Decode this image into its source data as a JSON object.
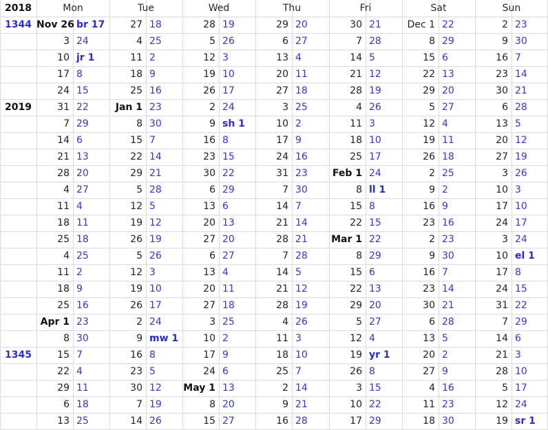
{
  "header": {
    "year": "2018",
    "days": [
      "Mon",
      "Tue",
      "Wed",
      "Thu",
      "Fri",
      "Sat",
      "Sun"
    ]
  },
  "rows": [
    {
      "year": "1344",
      "year_blue": true,
      "cells": [
        [
          "Nov 26",
          "br 17"
        ],
        [
          "27",
          "18"
        ],
        [
          "28",
          "19"
        ],
        [
          "29",
          "20"
        ],
        [
          "30",
          "21"
        ],
        [
          "Dec 1",
          "22"
        ],
        [
          "2",
          "23"
        ]
      ],
      "bold_g": [
        0
      ],
      "bold_i": [
        0
      ]
    },
    {
      "year": "",
      "cells": [
        [
          "3",
          "24"
        ],
        [
          "4",
          "25"
        ],
        [
          "5",
          "26"
        ],
        [
          "6",
          "27"
        ],
        [
          "7",
          "28"
        ],
        [
          "8",
          "29"
        ],
        [
          "9",
          "30"
        ]
      ]
    },
    {
      "year": "",
      "cells": [
        [
          "10",
          "jr 1"
        ],
        [
          "11",
          "2"
        ],
        [
          "12",
          "3"
        ],
        [
          "13",
          "4"
        ],
        [
          "14",
          "5"
        ],
        [
          "15",
          "6"
        ],
        [
          "16",
          "7"
        ]
      ],
      "bold_i": [
        0
      ]
    },
    {
      "year": "",
      "cells": [
        [
          "17",
          "8"
        ],
        [
          "18",
          "9"
        ],
        [
          "19",
          "10"
        ],
        [
          "20",
          "11"
        ],
        [
          "21",
          "12"
        ],
        [
          "22",
          "13"
        ],
        [
          "23",
          "14"
        ]
      ]
    },
    {
      "year": "",
      "cells": [
        [
          "24",
          "15"
        ],
        [
          "25",
          "16"
        ],
        [
          "26",
          "17"
        ],
        [
          "27",
          "18"
        ],
        [
          "28",
          "19"
        ],
        [
          "29",
          "20"
        ],
        [
          "30",
          "21"
        ]
      ]
    },
    {
      "year": "2019",
      "year_blue": false,
      "cells": [
        [
          "31",
          "22"
        ],
        [
          "Jan 1",
          "23"
        ],
        [
          "2",
          "24"
        ],
        [
          "3",
          "25"
        ],
        [
          "4",
          "26"
        ],
        [
          "5",
          "27"
        ],
        [
          "6",
          "28"
        ]
      ],
      "bold_g": [
        1
      ]
    },
    {
      "year": "",
      "cells": [
        [
          "7",
          "29"
        ],
        [
          "8",
          "30"
        ],
        [
          "9",
          "sh 1"
        ],
        [
          "10",
          "2"
        ],
        [
          "11",
          "3"
        ],
        [
          "12",
          "4"
        ],
        [
          "13",
          "5"
        ]
      ],
      "bold_i": [
        2
      ]
    },
    {
      "year": "",
      "cells": [
        [
          "14",
          "6"
        ],
        [
          "15",
          "7"
        ],
        [
          "16",
          "8"
        ],
        [
          "17",
          "9"
        ],
        [
          "18",
          "10"
        ],
        [
          "19",
          "11"
        ],
        [
          "20",
          "12"
        ]
      ]
    },
    {
      "year": "",
      "cells": [
        [
          "21",
          "13"
        ],
        [
          "22",
          "14"
        ],
        [
          "23",
          "15"
        ],
        [
          "24",
          "16"
        ],
        [
          "25",
          "17"
        ],
        [
          "26",
          "18"
        ],
        [
          "27",
          "19"
        ]
      ]
    },
    {
      "year": "",
      "cells": [
        [
          "28",
          "20"
        ],
        [
          "29",
          "21"
        ],
        [
          "30",
          "22"
        ],
        [
          "31",
          "23"
        ],
        [
          "Feb 1",
          "24"
        ],
        [
          "2",
          "25"
        ],
        [
          "3",
          "26"
        ]
      ],
      "bold_g": [
        4
      ]
    },
    {
      "year": "",
      "cells": [
        [
          "4",
          "27"
        ],
        [
          "5",
          "28"
        ],
        [
          "6",
          "29"
        ],
        [
          "7",
          "30"
        ],
        [
          "8",
          "ll 1"
        ],
        [
          "9",
          "2"
        ],
        [
          "10",
          "3"
        ]
      ],
      "bold_i": [
        4
      ]
    },
    {
      "year": "",
      "cells": [
        [
          "11",
          "4"
        ],
        [
          "12",
          "5"
        ],
        [
          "13",
          "6"
        ],
        [
          "14",
          "7"
        ],
        [
          "15",
          "8"
        ],
        [
          "16",
          "9"
        ],
        [
          "17",
          "10"
        ]
      ]
    },
    {
      "year": "",
      "cells": [
        [
          "18",
          "11"
        ],
        [
          "19",
          "12"
        ],
        [
          "20",
          "13"
        ],
        [
          "21",
          "14"
        ],
        [
          "22",
          "15"
        ],
        [
          "23",
          "16"
        ],
        [
          "24",
          "17"
        ]
      ]
    },
    {
      "year": "",
      "cells": [
        [
          "25",
          "18"
        ],
        [
          "26",
          "19"
        ],
        [
          "27",
          "20"
        ],
        [
          "28",
          "21"
        ],
        [
          "Mar 1",
          "22"
        ],
        [
          "2",
          "23"
        ],
        [
          "3",
          "24"
        ]
      ],
      "bold_g": [
        4
      ]
    },
    {
      "year": "",
      "cells": [
        [
          "4",
          "25"
        ],
        [
          "5",
          "26"
        ],
        [
          "6",
          "27"
        ],
        [
          "7",
          "28"
        ],
        [
          "8",
          "29"
        ],
        [
          "9",
          "30"
        ],
        [
          "10",
          "el 1"
        ]
      ],
      "bold_i": [
        6
      ]
    },
    {
      "year": "",
      "cells": [
        [
          "11",
          "2"
        ],
        [
          "12",
          "3"
        ],
        [
          "13",
          "4"
        ],
        [
          "14",
          "5"
        ],
        [
          "15",
          "6"
        ],
        [
          "16",
          "7"
        ],
        [
          "17",
          "8"
        ]
      ]
    },
    {
      "year": "",
      "cells": [
        [
          "18",
          "9"
        ],
        [
          "19",
          "10"
        ],
        [
          "20",
          "11"
        ],
        [
          "21",
          "12"
        ],
        [
          "22",
          "13"
        ],
        [
          "23",
          "14"
        ],
        [
          "24",
          "15"
        ]
      ]
    },
    {
      "year": "",
      "cells": [
        [
          "25",
          "16"
        ],
        [
          "26",
          "17"
        ],
        [
          "27",
          "18"
        ],
        [
          "28",
          "19"
        ],
        [
          "29",
          "20"
        ],
        [
          "30",
          "21"
        ],
        [
          "31",
          "22"
        ]
      ]
    },
    {
      "year": "",
      "cells": [
        [
          "Apr 1",
          "23"
        ],
        [
          "2",
          "24"
        ],
        [
          "3",
          "25"
        ],
        [
          "4",
          "26"
        ],
        [
          "5",
          "27"
        ],
        [
          "6",
          "28"
        ],
        [
          "7",
          "29"
        ]
      ],
      "bold_g": [
        0
      ]
    },
    {
      "year": "",
      "cells": [
        [
          "8",
          "30"
        ],
        [
          "9",
          "mw 1"
        ],
        [
          "10",
          "2"
        ],
        [
          "11",
          "3"
        ],
        [
          "12",
          "4"
        ],
        [
          "13",
          "5"
        ],
        [
          "14",
          "6"
        ]
      ],
      "bold_i": [
        1
      ]
    },
    {
      "year": "1345",
      "year_blue": true,
      "cells": [
        [
          "15",
          "7"
        ],
        [
          "16",
          "8"
        ],
        [
          "17",
          "9"
        ],
        [
          "18",
          "10"
        ],
        [
          "19",
          "yr 1"
        ],
        [
          "20",
          "2"
        ],
        [
          "21",
          "3"
        ]
      ],
      "bold_i": [
        4
      ]
    },
    {
      "year": "",
      "cells": [
        [
          "22",
          "4"
        ],
        [
          "23",
          "5"
        ],
        [
          "24",
          "6"
        ],
        [
          "25",
          "7"
        ],
        [
          "26",
          "8"
        ],
        [
          "27",
          "9"
        ],
        [
          "28",
          "10"
        ]
      ]
    },
    {
      "year": "",
      "cells": [
        [
          "29",
          "11"
        ],
        [
          "30",
          "12"
        ],
        [
          "May 1",
          "13"
        ],
        [
          "2",
          "14"
        ],
        [
          "3",
          "15"
        ],
        [
          "4",
          "16"
        ],
        [
          "5",
          "17"
        ]
      ],
      "bold_g": [
        2
      ]
    },
    {
      "year": "",
      "cells": [
        [
          "6",
          "18"
        ],
        [
          "7",
          "19"
        ],
        [
          "8",
          "20"
        ],
        [
          "9",
          "21"
        ],
        [
          "10",
          "22"
        ],
        [
          "11",
          "23"
        ],
        [
          "12",
          "24"
        ]
      ]
    },
    {
      "year": "",
      "cells": [
        [
          "13",
          "25"
        ],
        [
          "14",
          "26"
        ],
        [
          "15",
          "27"
        ],
        [
          "16",
          "28"
        ],
        [
          "17",
          "29"
        ],
        [
          "18",
          "30"
        ],
        [
          "19",
          "sr 1"
        ]
      ],
      "bold_i": [
        6
      ]
    }
  ]
}
